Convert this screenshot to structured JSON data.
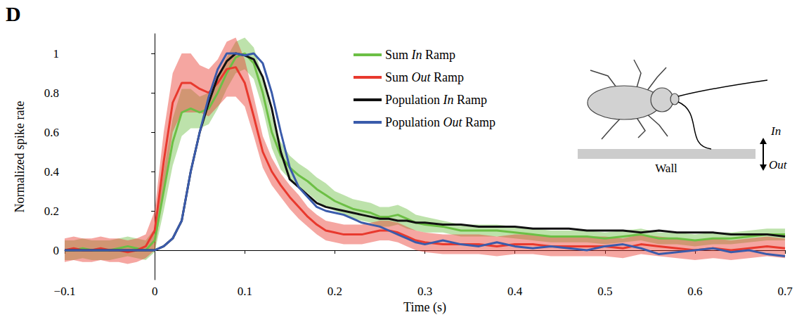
{
  "panel_label": "D",
  "chart_data": {
    "type": "line",
    "x_label": "Time (s)",
    "y_label": "Normalized spike rate",
    "x": [
      -0.1,
      -0.09,
      -0.08,
      -0.07,
      -0.06,
      -0.05,
      -0.04,
      -0.03,
      -0.02,
      -0.01,
      0,
      0.01,
      0.02,
      0.03,
      0.04,
      0.05,
      0.06,
      0.07,
      0.08,
      0.09,
      0.1,
      0.11,
      0.12,
      0.13,
      0.14,
      0.15,
      0.16,
      0.17,
      0.18,
      0.19,
      0.2,
      0.21,
      0.22,
      0.23,
      0.24,
      0.25,
      0.26,
      0.27,
      0.28,
      0.29,
      0.3,
      0.32,
      0.34,
      0.36,
      0.38,
      0.4,
      0.42,
      0.44,
      0.46,
      0.48,
      0.5,
      0.52,
      0.54,
      0.56,
      0.58,
      0.6,
      0.62,
      0.64,
      0.66,
      0.68,
      0.7
    ],
    "xlim": [
      -0.1,
      0.7
    ],
    "xticks": [
      {
        "value": -0.1,
        "label": "−0.1"
      },
      0,
      0.1,
      0.2,
      0.3,
      0.4,
      0.5,
      0.6,
      0.7
    ],
    "ylim": [
      -0.15,
      1.1
    ],
    "yticks": [
      0,
      0.2,
      0.4,
      0.6,
      0.8,
      1
    ],
    "grid": false,
    "legend": "top",
    "series": [
      {
        "name": "Sum In Ramp",
        "color": "#6cbf45",
        "values": [
          0,
          0,
          0.01,
          0,
          0,
          0,
          0.01,
          0.02,
          0.01,
          0,
          0.05,
          0.3,
          0.55,
          0.7,
          0.72,
          0.7,
          0.72,
          0.8,
          0.9,
          0.98,
          1.0,
          0.95,
          0.8,
          0.6,
          0.48,
          0.42,
          0.38,
          0.35,
          0.31,
          0.28,
          0.25,
          0.23,
          0.21,
          0.2,
          0.19,
          0.17,
          0.17,
          0.18,
          0.16,
          0.14,
          0.13,
          0.12,
          0.1,
          0.1,
          0.1,
          0.09,
          0.08,
          0.07,
          0.07,
          0.07,
          0.06,
          0.07,
          0.08,
          0.06,
          0.06,
          0.05,
          0.06,
          0.06,
          0.07,
          0.08,
          0.08
        ],
        "error": [
          0.05,
          0.05,
          0.05,
          0.05,
          0.05,
          0.05,
          0.05,
          0.05,
          0.05,
          0.05,
          0.06,
          0.1,
          0.12,
          0.12,
          0.1,
          0.08,
          0.08,
          0.08,
          0.08,
          0.08,
          0.08,
          0.08,
          0.08,
          0.08,
          0.07,
          0.06,
          0.06,
          0.06,
          0.06,
          0.06,
          0.05,
          0.05,
          0.05,
          0.05,
          0.05,
          0.05,
          0.05,
          0.05,
          0.05,
          0.04,
          0.04,
          0.03,
          0.03,
          0.03,
          0.03,
          0.03,
          0.03,
          0.03,
          0.03,
          0.03,
          0.03,
          0.03,
          0.03,
          0.03,
          0.03,
          0.03,
          0.03,
          0.03,
          0.03,
          0.03,
          0.03
        ]
      },
      {
        "name": "Sum Out Ramp",
        "color": "#e8392e",
        "values": [
          0,
          0.01,
          0,
          0,
          0.01,
          0,
          0,
          -0.01,
          0,
          0.02,
          0.1,
          0.45,
          0.75,
          0.85,
          0.85,
          0.82,
          0.8,
          0.85,
          0.92,
          0.93,
          0.85,
          0.68,
          0.5,
          0.4,
          0.33,
          0.27,
          0.22,
          0.17,
          0.13,
          0.1,
          0.09,
          0.08,
          0.08,
          0.08,
          0.09,
          0.1,
          0.1,
          0.09,
          0.07,
          0.05,
          0.04,
          0.03,
          0.03,
          0.03,
          0.02,
          0.03,
          0.03,
          0.02,
          0.02,
          0.02,
          0.02,
          0.01,
          0.03,
          0.02,
          0.01,
          0,
          0.01,
          0,
          0.01,
          0.02,
          0.01
        ],
        "error": [
          0.06,
          0.06,
          0.06,
          0.06,
          0.06,
          0.06,
          0.06,
          0.06,
          0.06,
          0.06,
          0.1,
          0.15,
          0.15,
          0.15,
          0.15,
          0.12,
          0.12,
          0.12,
          0.14,
          0.15,
          0.12,
          0.1,
          0.08,
          0.07,
          0.06,
          0.06,
          0.06,
          0.05,
          0.05,
          0.05,
          0.05,
          0.05,
          0.05,
          0.05,
          0.05,
          0.05,
          0.05,
          0.05,
          0.05,
          0.05,
          0.05,
          0.05,
          0.05,
          0.05,
          0.05,
          0.05,
          0.05,
          0.05,
          0.05,
          0.05,
          0.05,
          0.05,
          0.05,
          0.05,
          0.05,
          0.05,
          0.05,
          0.05,
          0.05,
          0.05,
          0.05
        ]
      },
      {
        "name": "Population In Ramp",
        "color": "#111111",
        "values": [
          0,
          0,
          0,
          0,
          0,
          0,
          0,
          0,
          0,
          0,
          0,
          0.02,
          0.06,
          0.15,
          0.4,
          0.6,
          0.75,
          0.88,
          0.96,
          1.0,
          0.99,
          0.97,
          0.88,
          0.72,
          0.5,
          0.36,
          0.32,
          0.28,
          0.24,
          0.22,
          0.21,
          0.2,
          0.19,
          0.18,
          0.17,
          0.16,
          0.16,
          0.15,
          0.15,
          0.14,
          0.14,
          0.13,
          0.13,
          0.12,
          0.12,
          0.12,
          0.11,
          0.11,
          0.11,
          0.1,
          0.1,
          0.1,
          0.09,
          0.1,
          0.09,
          0.09,
          0.09,
          0.08,
          0.08,
          0.08,
          0.07
        ]
      },
      {
        "name": "Population Out Ramp",
        "color": "#3a5bab",
        "values": [
          0,
          0,
          0,
          0,
          0,
          0,
          0,
          0,
          0,
          0,
          0,
          0.02,
          0.06,
          0.15,
          0.4,
          0.6,
          0.78,
          0.92,
          1.0,
          1.0,
          0.99,
          1.0,
          0.95,
          0.8,
          0.6,
          0.42,
          0.32,
          0.27,
          0.22,
          0.2,
          0.19,
          0.18,
          0.16,
          0.14,
          0.13,
          0.12,
          0.1,
          0.08,
          0.06,
          0.04,
          0.03,
          0.05,
          0.03,
          0.02,
          0.04,
          0.02,
          0.01,
          0.02,
          0.01,
          0,
          0.02,
          0.03,
          0.01,
          -0.02,
          -0.01,
          0,
          0.01,
          -0.01,
          0,
          -0.02,
          -0.03
        ]
      }
    ]
  },
  "inset": {
    "wall_label": "Wall",
    "in_label": "In",
    "out_label": "Out"
  }
}
